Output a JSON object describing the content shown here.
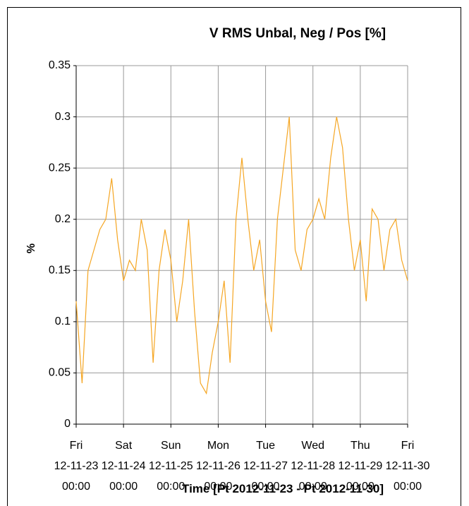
{
  "chart_data": {
    "type": "line",
    "title": "V RMS Unbal, Neg / Pos [%]",
    "y_label": "%",
    "x_label": "Time [Pt 2012-11-23 - Pt 2012-11-30]",
    "xlim": [
      "12-11-23 00:00",
      "12-11-30 00:00"
    ],
    "xticks": [
      {
        "value": "12-11-23 00:00",
        "label": "Fri\n12-11-23\n00:00"
      },
      {
        "value": "12-11-24 00:00",
        "label": "Sat\n12-11-24\n00:00"
      },
      {
        "value": "12-11-25 00:00",
        "label": "Sun\n12-11-25\n00:00"
      },
      {
        "value": "12-11-26 00:00",
        "label": "Mon\n12-11-26\n00:00"
      },
      {
        "value": "12-11-27 00:00",
        "label": "Tue\n12-11-27\n00:00"
      },
      {
        "value": "12-11-28 00:00",
        "label": "Wed\n12-11-28\n00:00"
      },
      {
        "value": "12-11-29 00:00",
        "label": "Thu\n12-11-29\n00:00"
      },
      {
        "value": "12-11-30 00:00",
        "label": "Fri\n12-11-30\n00:00"
      }
    ],
    "ylim": [
      0,
      0.35
    ],
    "yticks": [
      0,
      0.05,
      0.1,
      0.15,
      0.2,
      0.25,
      0.3,
      0.35
    ],
    "grid": true,
    "x": [
      "12-11-23 00:00",
      "12-11-23 03:00",
      "12-11-23 06:00",
      "12-11-23 09:00",
      "12-11-23 12:00",
      "12-11-23 15:00",
      "12-11-23 18:00",
      "12-11-23 21:00",
      "12-11-24 00:00",
      "12-11-24 03:00",
      "12-11-24 06:00",
      "12-11-24 09:00",
      "12-11-24 12:00",
      "12-11-24 15:00",
      "12-11-24 18:00",
      "12-11-24 21:00",
      "12-11-25 00:00",
      "12-11-25 03:00",
      "12-11-25 06:00",
      "12-11-25 09:00",
      "12-11-25 12:00",
      "12-11-25 15:00",
      "12-11-25 18:00",
      "12-11-25 21:00",
      "12-11-26 00:00",
      "12-11-26 03:00",
      "12-11-26 06:00",
      "12-11-26 09:00",
      "12-11-26 12:00",
      "12-11-26 15:00",
      "12-11-26 18:00",
      "12-11-26 21:00",
      "12-11-27 00:00",
      "12-11-27 03:00",
      "12-11-27 06:00",
      "12-11-27 09:00",
      "12-11-27 12:00",
      "12-11-27 15:00",
      "12-11-27 18:00",
      "12-11-27 21:00",
      "12-11-28 00:00",
      "12-11-28 03:00",
      "12-11-28 06:00",
      "12-11-28 09:00",
      "12-11-28 12:00",
      "12-11-28 15:00",
      "12-11-28 18:00",
      "12-11-28 21:00",
      "12-11-29 00:00",
      "12-11-29 03:00",
      "12-11-29 06:00",
      "12-11-29 09:00",
      "12-11-29 12:00",
      "12-11-29 15:00",
      "12-11-29 18:00",
      "12-11-29 21:00",
      "12-11-30 00:00"
    ],
    "series": [
      {
        "color": "#f5a623",
        "values": [
          0.12,
          0.04,
          0.15,
          0.17,
          0.19,
          0.2,
          0.24,
          0.18,
          0.14,
          0.16,
          0.15,
          0.2,
          0.17,
          0.06,
          0.15,
          0.19,
          0.16,
          0.1,
          0.14,
          0.2,
          0.11,
          0.04,
          0.03,
          0.07,
          0.1,
          0.14,
          0.06,
          0.2,
          0.26,
          0.2,
          0.15,
          0.18,
          0.12,
          0.09,
          0.2,
          0.25,
          0.3,
          0.17,
          0.15,
          0.19,
          0.2,
          0.22,
          0.2,
          0.26,
          0.3,
          0.27,
          0.2,
          0.15,
          0.18,
          0.12,
          0.21,
          0.2,
          0.15,
          0.19,
          0.2,
          0.16,
          0.14
        ]
      }
    ]
  }
}
